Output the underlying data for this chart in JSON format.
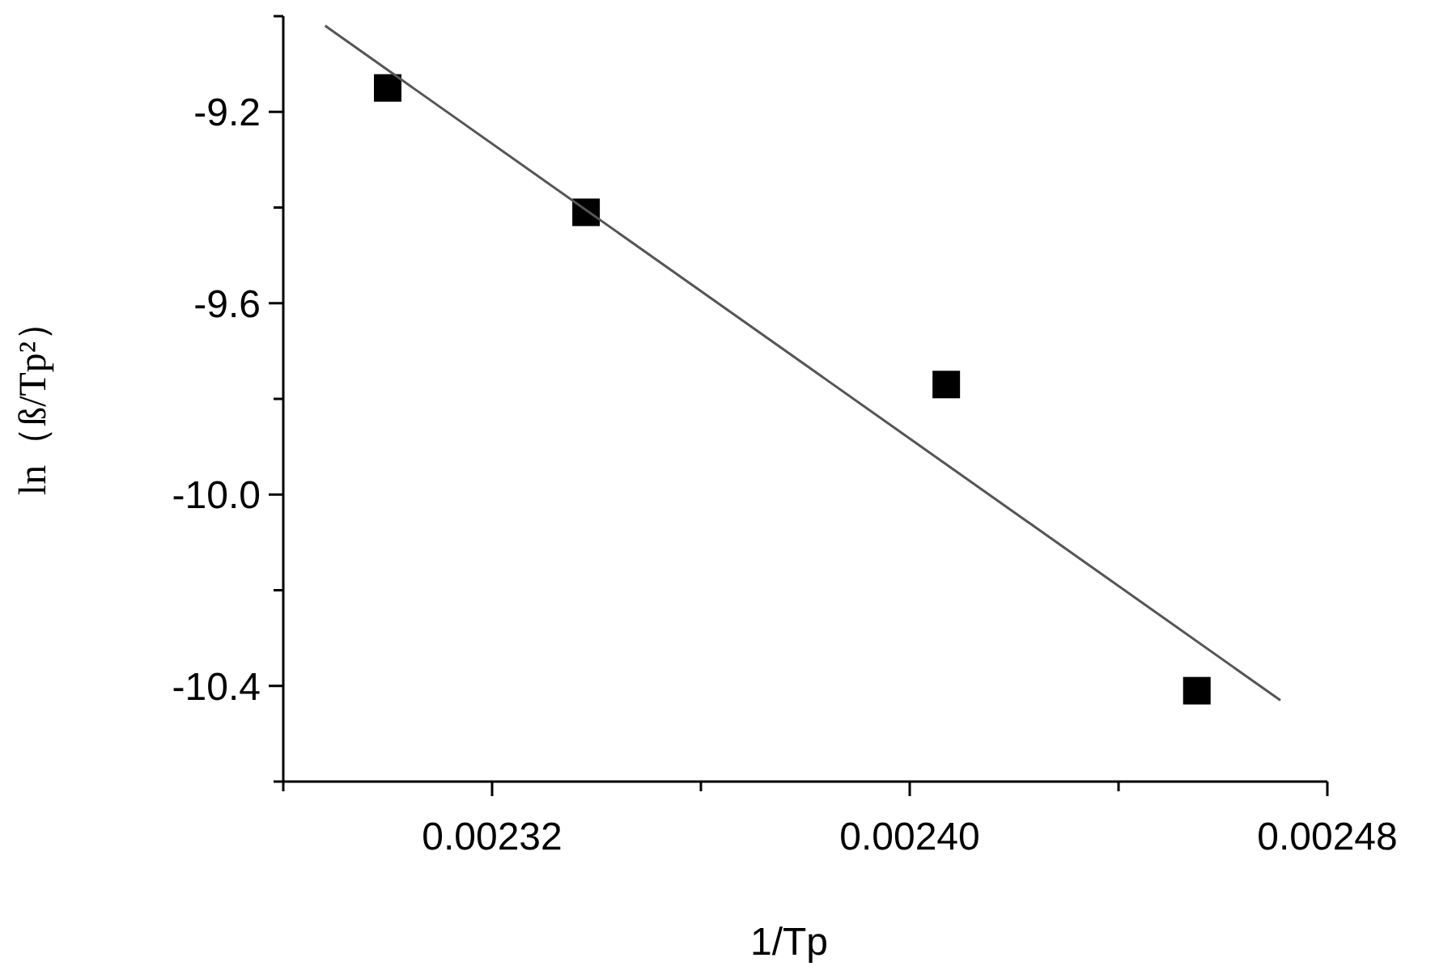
{
  "chart_data": {
    "type": "scatter",
    "xlabel": "1/Tp",
    "ylabel": "ln（ß/Tp²）",
    "xlim": [
      0.00228,
      0.00248
    ],
    "xticks": [
      {
        "value": 0.00228,
        "label": null
      },
      {
        "value": 0.00232,
        "label": "0.00232"
      },
      {
        "value": 0.00236,
        "label": null
      },
      {
        "value": 0.0024,
        "label": "0.00240"
      },
      {
        "value": 0.00244,
        "label": null
      },
      {
        "value": 0.00248,
        "label": "0.00248"
      }
    ],
    "ylim": [
      -10.6,
      -9.0
    ],
    "yticks": [
      {
        "value": -10.6,
        "label": null
      },
      {
        "value": -10.4,
        "label": "-10.4"
      },
      {
        "value": -10.2,
        "label": null
      },
      {
        "value": -10,
        "label": "-10.0"
      },
      {
        "value": -9.8,
        "label": null
      },
      {
        "value": -9.6,
        "label": "-9.6"
      },
      {
        "value": -9.4,
        "label": null
      },
      {
        "value": -9.2,
        "label": "-9.2"
      },
      {
        "value": -9.0,
        "label": null
      }
    ],
    "marker": "square",
    "grid": false,
    "series": [
      {
        "color": "#000000",
        "x": [
          0.0023,
          0.002338,
          0.002407,
          0.002455
        ],
        "values": [
          -9.15,
          -9.41,
          -9.77,
          -10.41
        ]
      },
      {
        "type": "line",
        "color": "#555555",
        "marker": "none",
        "x": [
          0.002288,
          0.002471
        ],
        "values": [
          -9.02,
          -10.43
        ]
      }
    ]
  }
}
